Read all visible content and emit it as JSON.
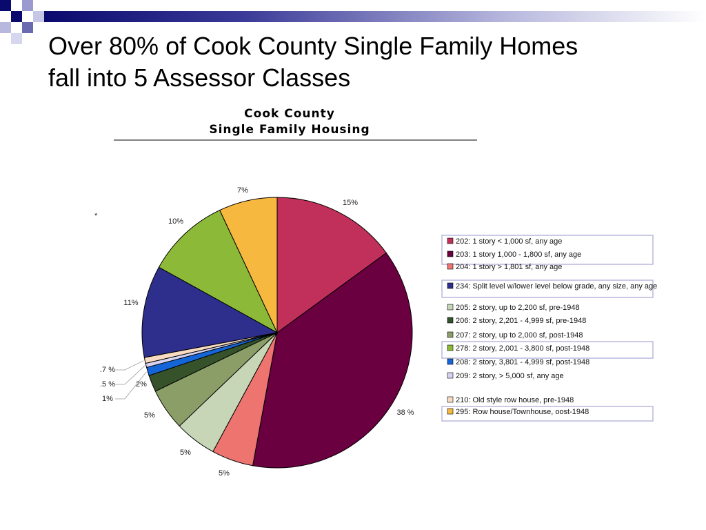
{
  "slide": {
    "title_line1": "Over 80% of Cook County Single Family Homes",
    "title_line2": "fall into 5 Assessor Classes",
    "accent_colors": [
      "#0a0a6e",
      "#3a3a98",
      "#b8b8de"
    ]
  },
  "chart_data": {
    "type": "pie",
    "title": "Cook County",
    "subtitle": "Single Family Housing",
    "stray_mark": "*",
    "slices": [
      {
        "class": "202",
        "label": "15%",
        "value": 15,
        "color": "#c0305a",
        "legend": "202: 1 story < 1,000 sf, any age"
      },
      {
        "class": "203",
        "label": "38 %",
        "value": 38,
        "color": "#6a0040",
        "legend": "203: 1 story 1,000 - 1,800 sf, any age"
      },
      {
        "class": "204",
        "label": "5%",
        "value": 5,
        "color": "#ee7470",
        "legend": "204: 1 story  > 1,801 sf, any age"
      },
      {
        "class": "205",
        "label": "5%",
        "value": 5,
        "color": "#c6d6b6",
        "legend": "205: 2 story, up to 2,200 sf, pre-1948"
      },
      {
        "class": "207",
        "label": "5%",
        "value": 5,
        "color": "#8c9e68",
        "legend": "207: 2 story, up to 2,000 sf,  post-1948"
      },
      {
        "class": "206",
        "label": "2%",
        "value": 2,
        "color": "#35522a",
        "legend": "206: 2 story, 2,201 - 4,999 sf, pre-1948"
      },
      {
        "class": "208",
        "label": "1%",
        "value": 1,
        "color": "#1466d8",
        "legend": "208: 2 story, 3,801 - 4,999 sf,  post-1948"
      },
      {
        "class": "209",
        "label": ".5 %",
        "value": 0.5,
        "color": "#d6d2f2",
        "legend": "209: 2 story, > 5,000 sf,  any age"
      },
      {
        "class": "210",
        "label": ".7 %",
        "value": 0.7,
        "color": "#f8dcc2",
        "legend": "210: Old style row house, pre-1948"
      },
      {
        "class": "234",
        "label": "11%",
        "value": 11,
        "color": "#2e2e8c",
        "legend": "234: Split level w/lower level below grade, any size, any age"
      },
      {
        "class": "278",
        "label": "10%",
        "value": 10,
        "color": "#8cba38",
        "legend": "278: 2 story, 2,001 - 3,800 sf,  post-1948"
      },
      {
        "class": "295",
        "label": "7%",
        "value": 7,
        "color": "#f6b83e",
        "legend": "295: Row house/Townhouse, oost-1948"
      }
    ],
    "legend_order": [
      "202",
      "203",
      "204",
      "234",
      "205",
      "206",
      "207",
      "278",
      "208",
      "209",
      "210",
      "295"
    ]
  }
}
